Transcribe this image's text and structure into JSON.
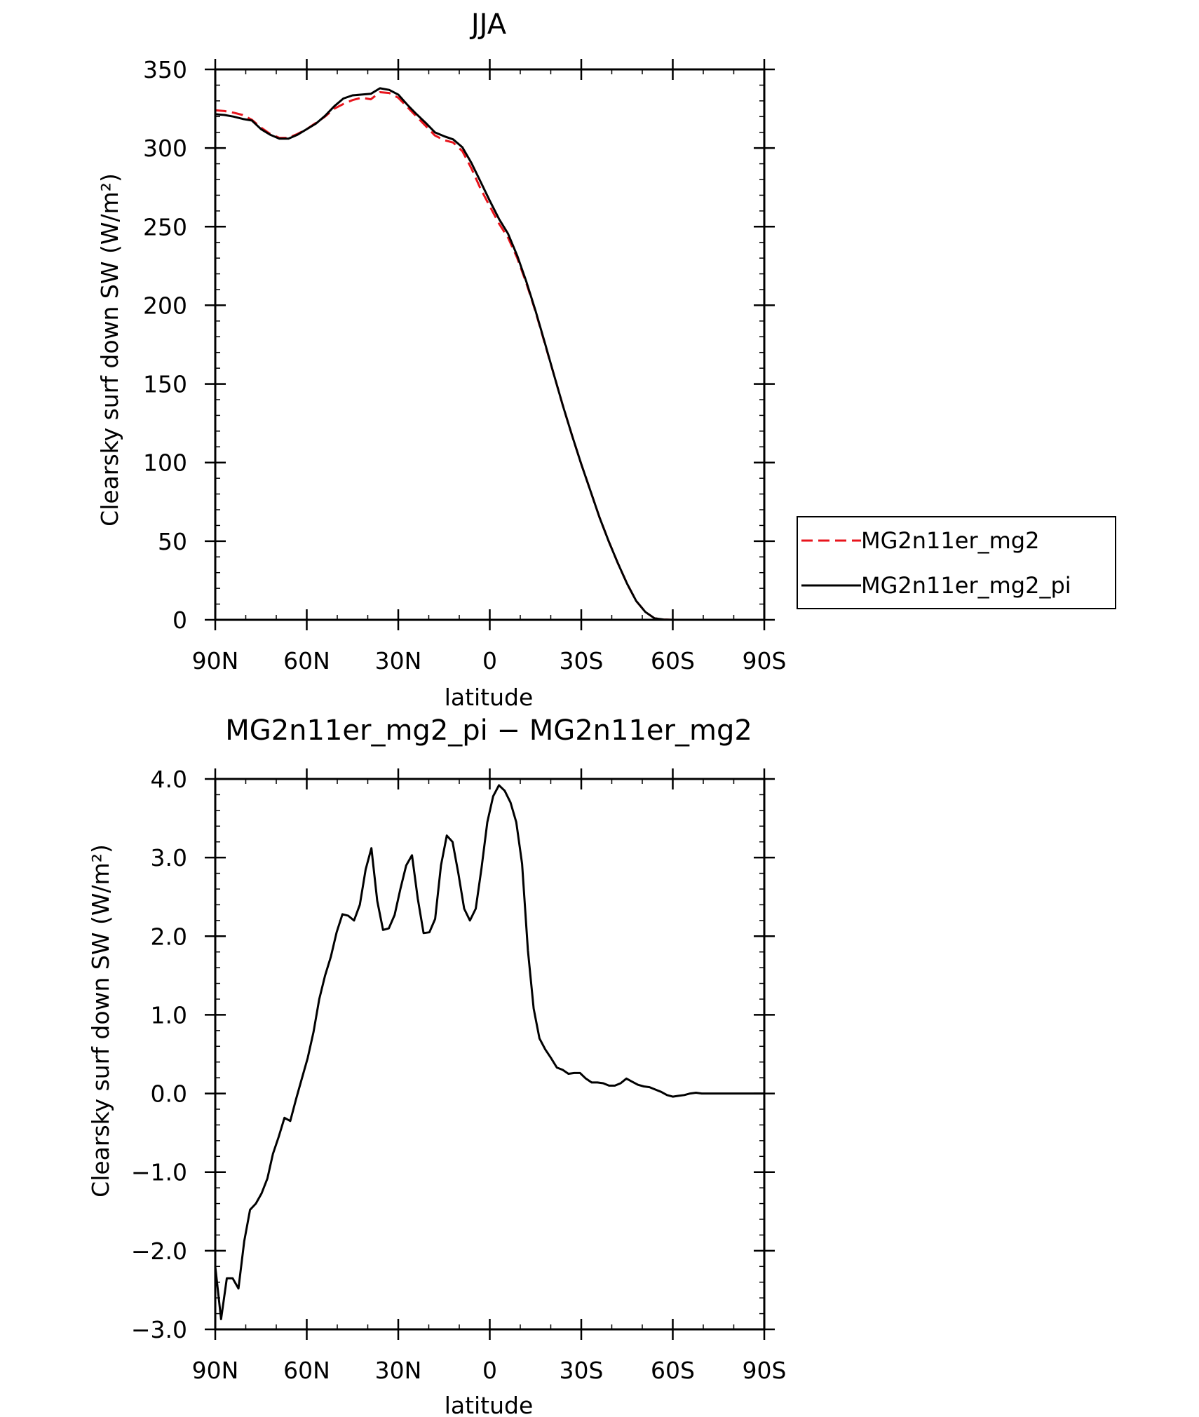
{
  "chart_data": [
    {
      "type": "line",
      "title": "JJA",
      "xlabel": "latitude",
      "ylabel": "Clearsky surf down SW (W/m²)",
      "xlim": [
        90,
        -90
      ],
      "ylim": [
        0,
        350
      ],
      "x_ticks": [
        90,
        60,
        30,
        0,
        -30,
        -60,
        -90
      ],
      "x_tick_labels": [
        "90N",
        "60N",
        "30N",
        "0",
        "30S",
        "60S",
        "90S"
      ],
      "y_ticks": [
        0,
        50,
        100,
        150,
        200,
        250,
        300,
        350
      ],
      "y_tick_labels": [
        "0",
        "50",
        "100",
        "150",
        "200",
        "250",
        "300",
        "350"
      ],
      "legend_position": "right",
      "series": [
        {
          "name": "MG2n11er_mg2",
          "color": "#e8141c",
          "dash": "dashed",
          "x": [
            90,
            87,
            84,
            81,
            78,
            75,
            72,
            69,
            66,
            63,
            60,
            57,
            54,
            51,
            48,
            45,
            42,
            39,
            36,
            33,
            30,
            27,
            24,
            21,
            18,
            15,
            12,
            9,
            6,
            3,
            0,
            -3,
            -6,
            -9,
            -12,
            -15,
            -18,
            -21,
            -24,
            -27,
            -30,
            -33,
            -36,
            -39,
            -42,
            -45,
            -48,
            -51,
            -54,
            -57,
            -60,
            -63,
            -66,
            -69,
            -72,
            -75,
            -78,
            -81,
            -84,
            -87,
            -90
          ],
          "y": [
            324,
            323.5,
            322.5,
            321,
            318,
            313,
            309,
            306.5,
            306.5,
            309,
            312,
            316,
            320,
            325,
            328,
            330.5,
            332,
            331,
            335.5,
            335,
            332,
            326,
            320,
            314,
            308,
            305,
            303.5,
            298,
            287,
            274,
            263,
            252,
            243,
            230,
            214,
            196,
            176,
            156,
            136,
            117,
            99,
            82,
            65,
            50,
            36,
            23,
            12,
            5,
            1,
            0.2,
            0,
            0,
            0,
            0,
            0,
            0,
            0,
            0,
            0,
            0,
            0
          ]
        },
        {
          "name": "MG2n11er_mg2_pi",
          "color": "#000000",
          "dash": "solid",
          "x": [
            90,
            87,
            84,
            81,
            78,
            75,
            72,
            69,
            66,
            63,
            60,
            57,
            54,
            51,
            48,
            45,
            42,
            39,
            36,
            33,
            30,
            27,
            24,
            21,
            18,
            15,
            12,
            9,
            6,
            3,
            0,
            -3,
            -6,
            -9,
            -12,
            -15,
            -18,
            -21,
            -24,
            -27,
            -30,
            -33,
            -36,
            -39,
            -42,
            -45,
            -48,
            -51,
            -54,
            -57,
            -60,
            -63,
            -66,
            -69,
            -72,
            -75,
            -78,
            -81,
            -84,
            -87,
            -90
          ],
          "y": [
            321.5,
            321,
            320,
            318.5,
            317.5,
            312,
            308.5,
            306,
            306,
            308.5,
            312,
            315.5,
            320.5,
            326.5,
            331.5,
            333.5,
            334,
            334.5,
            338,
            337,
            334,
            327.5,
            321.5,
            316,
            310,
            307.5,
            305.5,
            300.5,
            290.5,
            278.5,
            266.5,
            255,
            245.5,
            231.5,
            215,
            196.5,
            176.5,
            156,
            136,
            117,
            99,
            82,
            65,
            50,
            36,
            23,
            12,
            5,
            1,
            0.2,
            0,
            0,
            0,
            0,
            0,
            0,
            0,
            0,
            0,
            0,
            0
          ]
        }
      ]
    },
    {
      "type": "line",
      "title": "MG2n11er_mg2_pi − MG2n11er_mg2",
      "xlabel": "latitude",
      "ylabel": "Clearsky surf down SW (W/m²)",
      "xlim": [
        90,
        -90
      ],
      "ylim": [
        -3,
        4
      ],
      "x_ticks": [
        90,
        60,
        30,
        0,
        -30,
        -60,
        -90
      ],
      "x_tick_labels": [
        "90N",
        "60N",
        "30N",
        "0",
        "30S",
        "60S",
        "90S"
      ],
      "y_ticks": [
        -3,
        -2,
        -1,
        0,
        1,
        2,
        3,
        4
      ],
      "y_tick_labels": [
        "−3.0",
        "−2.0",
        "−1.0",
        "0.0",
        "1.0",
        "2.0",
        "3.0",
        "4.0"
      ],
      "series": [
        {
          "color": "#000000",
          "dash": "solid",
          "x": [
            90,
            88.1,
            86.2,
            84.3,
            82.4,
            80.5,
            78.6,
            76.7,
            74.8,
            72.9,
            71.1,
            69.2,
            67.3,
            65.4,
            63.5,
            61.6,
            59.7,
            57.8,
            55.9,
            54,
            52.1,
            50.2,
            48.3,
            46.4,
            44.5,
            42.6,
            40.7,
            38.8,
            36.9,
            35,
            33.1,
            31.2,
            29.3,
            27.4,
            25.5,
            23.6,
            21.7,
            19.8,
            17.9,
            16,
            14.1,
            12.2,
            10.3,
            8.4,
            6.5,
            4.6,
            2.7,
            0.8,
            -1.1,
            -3,
            -4.9,
            -6.8,
            -8.7,
            -10.6,
            -12.5,
            -14.4,
            -16.3,
            -18.2,
            -20.1,
            -22,
            -23.9,
            -25.8,
            -27.7,
            -29.6,
            -31.5,
            -33.4,
            -35.3,
            -37.2,
            -39.1,
            -41,
            -42.9,
            -44.8,
            -46.7,
            -48.6,
            -50.5,
            -52.4,
            -54.3,
            -56.2,
            -58.1,
            -60,
            -61.9,
            -63.8,
            -65.7,
            -67.6,
            -69.5,
            -71.4,
            -73.3,
            -75.2,
            -77.1,
            -79,
            -80.9,
            -82.8,
            -84.7,
            -86.6,
            -88.5,
            -90
          ],
          "y": [
            -2.2,
            -2.87,
            -2.35,
            -2.35,
            -2.48,
            -1.88,
            -1.48,
            -1.4,
            -1.27,
            -1.08,
            -0.77,
            -0.55,
            -0.31,
            -0.35,
            -0.07,
            0.19,
            0.45,
            0.78,
            1.2,
            1.5,
            1.74,
            2.05,
            2.28,
            2.26,
            2.2,
            2.4,
            2.85,
            3.12,
            2.45,
            2.08,
            2.1,
            2.27,
            2.6,
            2.9,
            3.03,
            2.48,
            2.04,
            2.05,
            2.22,
            2.9,
            3.28,
            3.2,
            2.8,
            2.35,
            2.2,
            2.35,
            2.87,
            3.45,
            3.78,
            3.92,
            3.85,
            3.7,
            3.45,
            2.92,
            1.82,
            1.08,
            0.7,
            0.56,
            0.45,
            0.33,
            0.3,
            0.25,
            0.26,
            0.26,
            0.19,
            0.14,
            0.14,
            0.13,
            0.1,
            0.1,
            0.13,
            0.19,
            0.15,
            0.11,
            0.09,
            0.08,
            0.05,
            0.02,
            -0.02,
            -0.04,
            -0.03,
            -0.02,
            0,
            0.01,
            0,
            0,
            0,
            0,
            0,
            0,
            0,
            0,
            0,
            0,
            0,
            0
          ]
        }
      ]
    }
  ]
}
